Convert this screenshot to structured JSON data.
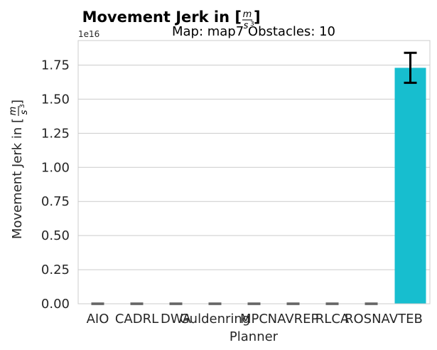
{
  "chart_data": {
    "type": "bar",
    "title_main": "Movement Jerk in [",
    "title_unit_num": "m",
    "title_unit_den": "s",
    "title_unit_exp": "3",
    "title_close": "]",
    "subtitle": "Map: map7 Obstacles: 10",
    "xlabel": "Planner",
    "ylabel_main": "Movement Jerk in [",
    "ylabel_unit_num": "m",
    "ylabel_unit_den": "s",
    "ylabel_unit_exp": "3",
    "ylabel_close": "]",
    "y_offset_label": "1e16",
    "y_multiplier": 1e+16,
    "ylim": [
      0,
      1.93
    ],
    "yticks": [
      0.0,
      0.25,
      0.5,
      0.75,
      1.0,
      1.25,
      1.5,
      1.75
    ],
    "ytick_labels": [
      "0.00",
      "0.25",
      "0.50",
      "0.75",
      "1.00",
      "1.25",
      "1.50",
      "1.75"
    ],
    "categories": [
      "AIO",
      "CADRL",
      "DWA",
      "Guldenring",
      "MPC",
      "NAVREP",
      "RLCA",
      "ROSNAV",
      "TEB"
    ],
    "values": [
      0,
      0,
      0,
      0,
      0,
      0,
      0,
      0,
      1.73
    ],
    "error": [
      0,
      0,
      0,
      0,
      0,
      0,
      0,
      0,
      0.11
    ],
    "bar_color": "#17becf",
    "grid": true
  }
}
